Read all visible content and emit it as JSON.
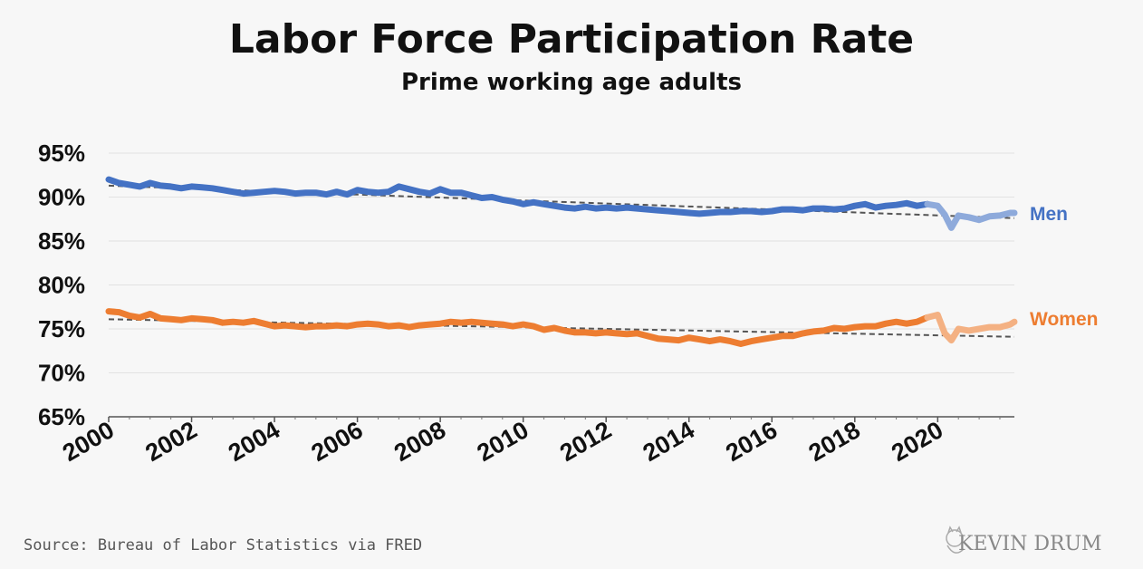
{
  "chart_data": {
    "type": "line",
    "title": "Labor Force Participation Rate",
    "subtitle": "Prime working age adults",
    "ylim": [
      65,
      95
    ],
    "yticks": [
      "65%",
      "70%",
      "75%",
      "80%",
      "85%",
      "90%",
      "95%"
    ],
    "ytick_values": [
      65,
      70,
      75,
      80,
      85,
      90,
      95
    ],
    "xlim": [
      2000,
      2021.85
    ],
    "xticks": [
      "2000",
      "2002",
      "2004",
      "2006",
      "2008",
      "2010",
      "2012",
      "2014",
      "2016",
      "2018",
      "2020"
    ],
    "xtick_values": [
      2000,
      2002,
      2004,
      2006,
      2008,
      2010,
      2012,
      2014,
      2016,
      2018,
      2020
    ],
    "grid": "horizontal",
    "series": [
      {
        "name": "Men",
        "color": "#4472c4",
        "post2020_color": "#8eaadb",
        "x": [
          2000,
          2000.25,
          2000.5,
          2000.75,
          2001,
          2001.25,
          2001.5,
          2001.75,
          2002,
          2002.25,
          2002.5,
          2002.75,
          2003,
          2003.25,
          2003.5,
          2003.75,
          2004,
          2004.25,
          2004.5,
          2004.75,
          2005,
          2005.25,
          2005.5,
          2005.75,
          2006,
          2006.25,
          2006.5,
          2006.75,
          2007,
          2007.25,
          2007.5,
          2007.75,
          2008,
          2008.25,
          2008.5,
          2008.75,
          2009,
          2009.25,
          2009.5,
          2009.75,
          2010,
          2010.25,
          2010.5,
          2010.75,
          2011,
          2011.25,
          2011.5,
          2011.75,
          2012,
          2012.25,
          2012.5,
          2012.75,
          2013,
          2013.25,
          2013.5,
          2013.75,
          2014,
          2014.25,
          2014.5,
          2014.75,
          2015,
          2015.25,
          2015.5,
          2015.75,
          2016,
          2016.25,
          2016.5,
          2016.75,
          2017,
          2017.25,
          2017.5,
          2017.75,
          2018,
          2018.25,
          2018.5,
          2018.75,
          2019,
          2019.25,
          2019.5,
          2019.75,
          2020,
          2020.17,
          2020.33,
          2020.5,
          2020.75,
          2021,
          2021.25,
          2021.5,
          2021.75,
          2021.85
        ],
        "values": [
          92.0,
          91.6,
          91.4,
          91.2,
          91.6,
          91.3,
          91.2,
          91.0,
          91.2,
          91.1,
          91.0,
          90.8,
          90.6,
          90.4,
          90.5,
          90.6,
          90.7,
          90.6,
          90.4,
          90.5,
          90.5,
          90.3,
          90.6,
          90.3,
          90.8,
          90.6,
          90.5,
          90.6,
          91.2,
          90.9,
          90.6,
          90.4,
          90.9,
          90.5,
          90.5,
          90.2,
          89.9,
          90.0,
          89.7,
          89.5,
          89.2,
          89.4,
          89.2,
          89.0,
          88.8,
          88.7,
          88.9,
          88.7,
          88.8,
          88.7,
          88.8,
          88.7,
          88.6,
          88.5,
          88.4,
          88.3,
          88.2,
          88.1,
          88.2,
          88.3,
          88.3,
          88.4,
          88.4,
          88.3,
          88.4,
          88.6,
          88.6,
          88.5,
          88.7,
          88.7,
          88.6,
          88.7,
          89.0,
          89.2,
          88.8,
          89.0,
          89.1,
          89.3,
          89.0,
          89.2,
          89.0,
          88.0,
          86.5,
          87.9,
          87.7,
          87.4,
          87.8,
          87.9,
          88.2,
          88.2
        ]
      },
      {
        "name": "Women",
        "color": "#ed7d31",
        "post2020_color": "#f4b183",
        "x": [
          2000,
          2000.25,
          2000.5,
          2000.75,
          2001,
          2001.25,
          2001.5,
          2001.75,
          2002,
          2002.25,
          2002.5,
          2002.75,
          2003,
          2003.25,
          2003.5,
          2003.75,
          2004,
          2004.25,
          2004.5,
          2004.75,
          2005,
          2005.25,
          2005.5,
          2005.75,
          2006,
          2006.25,
          2006.5,
          2006.75,
          2007,
          2007.25,
          2007.5,
          2007.75,
          2008,
          2008.25,
          2008.5,
          2008.75,
          2009,
          2009.25,
          2009.5,
          2009.75,
          2010,
          2010.25,
          2010.5,
          2010.75,
          2011,
          2011.25,
          2011.5,
          2011.75,
          2012,
          2012.25,
          2012.5,
          2012.75,
          2013,
          2013.25,
          2013.5,
          2013.75,
          2014,
          2014.25,
          2014.5,
          2014.75,
          2015,
          2015.25,
          2015.5,
          2015.75,
          2016,
          2016.25,
          2016.5,
          2016.75,
          2017,
          2017.25,
          2017.5,
          2017.75,
          2018,
          2018.25,
          2018.5,
          2018.75,
          2019,
          2019.25,
          2019.5,
          2019.75,
          2020,
          2020.17,
          2020.33,
          2020.5,
          2020.75,
          2021,
          2021.25,
          2021.5,
          2021.75,
          2021.85
        ],
        "values": [
          77.0,
          76.9,
          76.5,
          76.3,
          76.7,
          76.2,
          76.1,
          76.0,
          76.2,
          76.1,
          76.0,
          75.7,
          75.8,
          75.7,
          75.9,
          75.6,
          75.3,
          75.4,
          75.3,
          75.2,
          75.3,
          75.3,
          75.4,
          75.3,
          75.5,
          75.6,
          75.5,
          75.3,
          75.4,
          75.2,
          75.4,
          75.5,
          75.6,
          75.8,
          75.7,
          75.8,
          75.7,
          75.6,
          75.5,
          75.3,
          75.5,
          75.3,
          74.9,
          75.1,
          74.8,
          74.6,
          74.6,
          74.5,
          74.6,
          74.5,
          74.4,
          74.5,
          74.2,
          73.9,
          73.8,
          73.7,
          74.0,
          73.8,
          73.6,
          73.8,
          73.6,
          73.3,
          73.6,
          73.8,
          74.0,
          74.2,
          74.2,
          74.5,
          74.7,
          74.8,
          75.1,
          75.0,
          75.2,
          75.3,
          75.3,
          75.6,
          75.8,
          75.6,
          75.8,
          76.3,
          76.6,
          74.5,
          73.7,
          75.0,
          74.8,
          75.0,
          75.2,
          75.2,
          75.5,
          75.8
        ]
      }
    ],
    "trendlines": [
      {
        "series": "Men",
        "x": [
          2000,
          2021.85
        ],
        "values": [
          91.3,
          87.6
        ]
      },
      {
        "series": "Women",
        "x": [
          2000,
          2021.85
        ],
        "values": [
          76.1,
          74.1
        ]
      }
    ]
  },
  "footer": {
    "source": "Source: Bureau of Labor Statistics via FRED",
    "logo_text": "KEVIN DRUM"
  }
}
